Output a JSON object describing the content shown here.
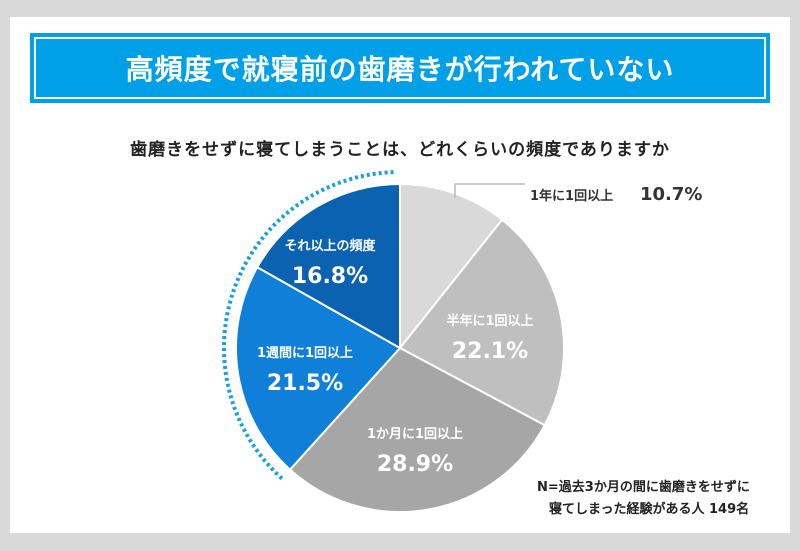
{
  "title": "高頻度で就寝前の歯磨きが行われていない",
  "chart_data": {
    "type": "pie",
    "title": "歯磨きをせずに寝てしまうことは、どれくらいの頻度でありますか",
    "slices": [
      {
        "label": "1年に1回以上",
        "value": 10.7,
        "display": "10.7%",
        "color": "#d9d9d9"
      },
      {
        "label": "半年に1回以上",
        "value": 22.1,
        "display": "22.1%",
        "color": "#bfbfbf"
      },
      {
        "label": "1か月に1回以上",
        "value": 28.9,
        "display": "28.9%",
        "color": "#a6a6a6"
      },
      {
        "label": "1週間に1回以上",
        "value": 21.5,
        "display": "21.5%",
        "color": "#0f7fd8"
      },
      {
        "label": "それ以上の頻度",
        "value": 16.8,
        "display": "16.8%",
        "color": "#0b62b0"
      }
    ],
    "start": "top",
    "direction": "clockwise"
  },
  "note": [
    "N=過去3か月の間に歯磨きをせずに",
    "寝てしまった経験がある人 149名"
  ]
}
